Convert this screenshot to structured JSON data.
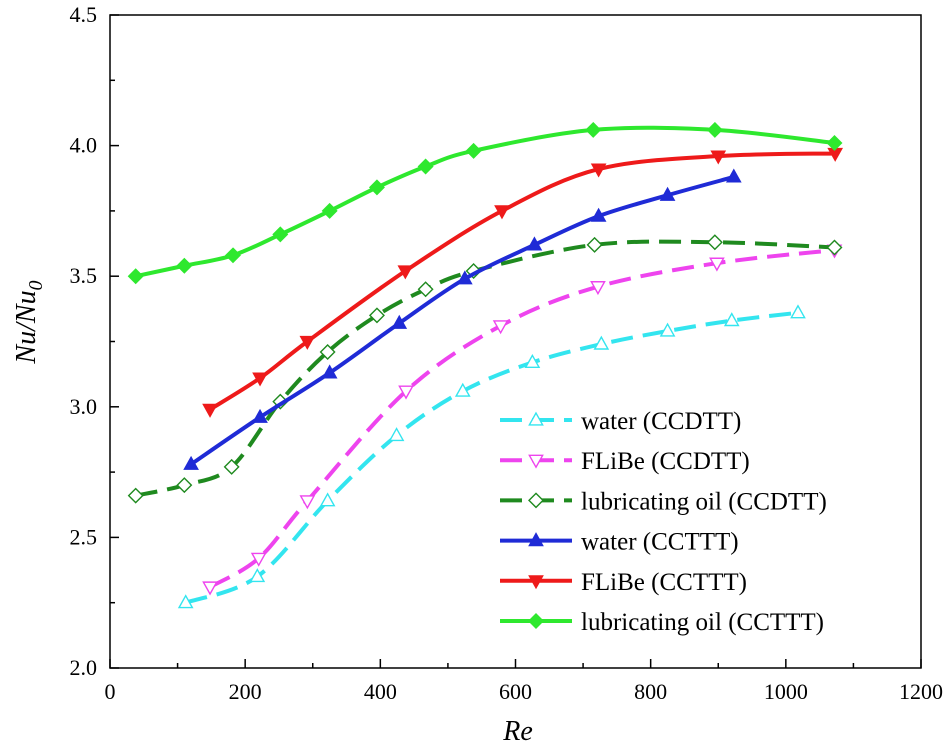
{
  "chart_data": {
    "type": "line",
    "title": "",
    "xlabel": "Re",
    "ylabel": {
      "base": "Nu/Nu",
      "subscript": "0"
    },
    "xlim": [
      0,
      1200
    ],
    "ylim": [
      2.0,
      4.5
    ],
    "xticks": [
      0,
      200,
      400,
      600,
      800,
      1000,
      1200
    ],
    "yticks": [
      2.0,
      2.5,
      3.0,
      3.5,
      4.0,
      4.5
    ],
    "xtick_labels": [
      "0",
      "200",
      "400",
      "600",
      "800",
      "1000",
      "1200"
    ],
    "ytick_labels": [
      "2.0",
      "2.5",
      "3.0",
      "3.5",
      "4.0",
      "4.5"
    ],
    "grid": false,
    "legend_position": "bottom-right",
    "series": [
      {
        "name": "water (CCDTT)",
        "color": "#33e5ef",
        "dash": "long-dash",
        "marker": "triangle-up-open",
        "x": [
          112,
          218,
          322,
          424,
          522,
          625,
          727,
          825,
          920,
          1018
        ],
        "y": [
          2.25,
          2.35,
          2.64,
          2.89,
          3.06,
          3.17,
          3.24,
          3.29,
          3.33,
          3.36
        ]
      },
      {
        "name": "FLiBe (CCDTT)",
        "color": "#ee44ee",
        "dash": "long-dash",
        "marker": "triangle-down-open",
        "x": [
          148,
          220,
          292,
          438,
          578,
          722,
          898,
          1072
        ],
        "y": [
          2.31,
          2.42,
          2.64,
          3.06,
          3.31,
          3.46,
          3.55,
          3.6
        ]
      },
      {
        "name": "lubricating oil (CCDTT)",
        "color": "#1f8a1f",
        "dash": "long-dash",
        "marker": "diamond-open",
        "x": [
          38,
          110,
          180,
          252,
          322,
          395,
          467,
          538,
          717,
          895,
          1072
        ],
        "y": [
          2.66,
          2.7,
          2.77,
          3.02,
          3.21,
          3.35,
          3.45,
          3.52,
          3.62,
          3.63,
          3.61
        ]
      },
      {
        "name": "water (CCTTT)",
        "color": "#1f2bd6",
        "dash": "solid",
        "marker": "triangle-up-filled",
        "x": [
          120,
          222,
          325,
          428,
          525,
          628,
          723,
          825,
          923
        ],
        "y": [
          2.78,
          2.96,
          3.13,
          3.32,
          3.49,
          3.62,
          3.73,
          3.81,
          3.88
        ]
      },
      {
        "name": "FLiBe (CCTTT)",
        "color": "#ee1a1a",
        "dash": "solid",
        "marker": "triangle-down-filled",
        "x": [
          148,
          222,
          292,
          437,
          580,
          723,
          900,
          1073
        ],
        "y": [
          2.99,
          3.11,
          3.25,
          3.52,
          3.75,
          3.91,
          3.96,
          3.97
        ]
      },
      {
        "name": "lubricating oil (CCTTT)",
        "color": "#2ee82e",
        "dash": "solid",
        "marker": "diamond-filled",
        "x": [
          38,
          110,
          182,
          252,
          325,
          395,
          467,
          538,
          715,
          895,
          1072
        ],
        "y": [
          3.5,
          3.54,
          3.58,
          3.66,
          3.75,
          3.84,
          3.92,
          3.98,
          4.06,
          4.06,
          4.01
        ]
      }
    ]
  }
}
